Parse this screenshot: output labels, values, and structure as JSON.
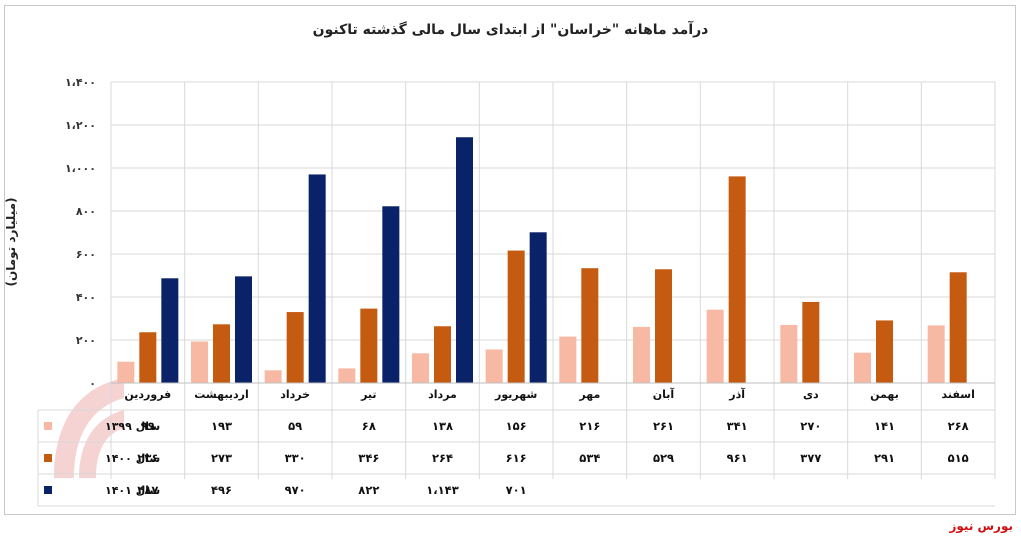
{
  "source_label": "بورس نیوز",
  "colors": {
    "s1399": "#f7b9a3",
    "s1400": "#c55a11",
    "s1401": "#0a2267",
    "grid": "#d9d9d9",
    "border": "#c8c8c8"
  },
  "chart_data": {
    "type": "bar",
    "title": "درآمد ماهانه \"خراسان\" از ابتدای سال مالی گذشته تاکنون",
    "ylabel": "(میلیارد تومان)",
    "ylim": [
      0,
      1400
    ],
    "yticks": [
      0,
      200,
      400,
      600,
      800,
      1000,
      1200,
      1400
    ],
    "ytick_labels": [
      "۰",
      "۲۰۰",
      "۴۰۰",
      "۶۰۰",
      "۸۰۰",
      "۱،۰۰۰",
      "۱،۲۰۰",
      "۱،۴۰۰"
    ],
    "grid": true,
    "legend": "table-left",
    "categories": [
      "فروردین",
      "اردیبهشت",
      "خرداد",
      "تیر",
      "مرداد",
      "شهریور",
      "مهر",
      "آبان",
      "آذر",
      "دی",
      "بهمن",
      "اسفند"
    ],
    "series": [
      {
        "name": "سال ۱۳۹۹",
        "color": "#f7b9a3",
        "values": [
          99,
          193,
          59,
          68,
          138,
          156,
          216,
          261,
          341,
          270,
          141,
          268
        ],
        "labels": [
          "۹۹",
          "۱۹۳",
          "۵۹",
          "۶۸",
          "۱۳۸",
          "۱۵۶",
          "۲۱۶",
          "۲۶۱",
          "۳۴۱",
          "۲۷۰",
          "۱۴۱",
          "۲۶۸"
        ]
      },
      {
        "name": "سال ۱۴۰۰",
        "color": "#c55a11",
        "values": [
          236,
          273,
          330,
          346,
          264,
          616,
          534,
          529,
          961,
          377,
          291,
          515
        ],
        "labels": [
          "۲۳۶",
          "۲۷۳",
          "۳۳۰",
          "۳۴۶",
          "۲۶۴",
          "۶۱۶",
          "۵۳۴",
          "۵۲۹",
          "۹۶۱",
          "۳۷۷",
          "۲۹۱",
          "۵۱۵"
        ]
      },
      {
        "name": "سال ۱۴۰۱",
        "color": "#0a2267",
        "values": [
          487,
          496,
          970,
          822,
          1143,
          701,
          null,
          null,
          null,
          null,
          null,
          null
        ],
        "labels": [
          "۴۸۷",
          "۴۹۶",
          "۹۷۰",
          "۸۲۲",
          "۱،۱۴۳",
          "۷۰۱",
          "",
          "",
          "",
          "",
          "",
          ""
        ]
      }
    ]
  }
}
